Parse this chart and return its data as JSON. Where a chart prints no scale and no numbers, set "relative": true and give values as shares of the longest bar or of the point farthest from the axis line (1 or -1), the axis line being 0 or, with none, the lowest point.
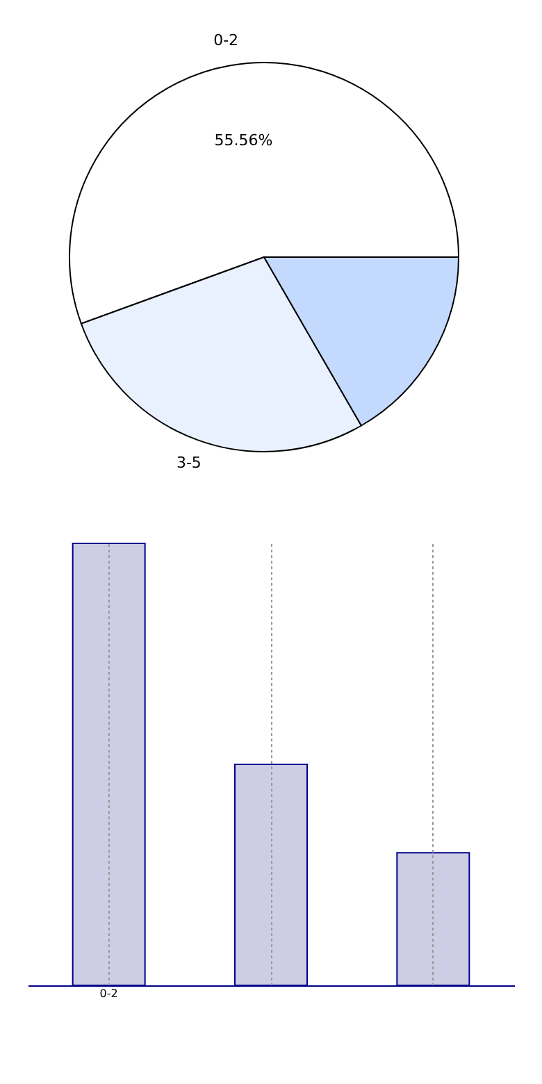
{
  "chart_data": [
    {
      "type": "pie",
      "categories": [
        "0-2",
        "3-5",
        null
      ],
      "values": [
        55.56,
        27.78,
        16.67
      ],
      "colors": [
        "#ffffff",
        "#eaf1fe",
        "#c4d9fe"
      ],
      "value_labels": [
        "55.56%",
        null,
        null
      ]
    },
    {
      "type": "bar",
      "categories": [
        "0-2",
        null,
        null
      ],
      "values": [
        1,
        0.5,
        0.3
      ],
      "color": "#cdcde6",
      "relative": true,
      "grid": "x"
    }
  ]
}
